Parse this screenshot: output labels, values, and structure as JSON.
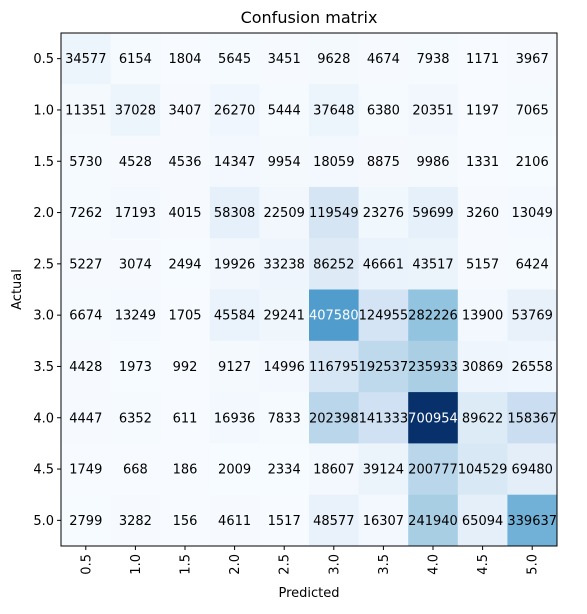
{
  "chart_data": {
    "type": "heatmap",
    "title": "Confusion matrix",
    "xlabel": "Predicted",
    "ylabel": "Actual",
    "x_categories": [
      "0.5",
      "1.0",
      "1.5",
      "2.0",
      "2.5",
      "3.0",
      "3.5",
      "4.0",
      "4.5",
      "5.0"
    ],
    "y_categories": [
      "0.5",
      "1.0",
      "1.5",
      "2.0",
      "2.5",
      "3.0",
      "3.5",
      "4.0",
      "4.5",
      "5.0"
    ],
    "values": [
      [
        34577,
        6154,
        1804,
        5645,
        3451,
        9628,
        4674,
        7938,
        1171,
        3967
      ],
      [
        11351,
        37028,
        3407,
        26270,
        5444,
        37648,
        6380,
        20351,
        1197,
        7065
      ],
      [
        5730,
        4528,
        4536,
        14347,
        9954,
        18059,
        8875,
        9986,
        1331,
        2106
      ],
      [
        7262,
        17193,
        4015,
        58308,
        22509,
        119549,
        23276,
        59699,
        3260,
        13049
      ],
      [
        5227,
        3074,
        2494,
        19926,
        33238,
        86252,
        46661,
        43517,
        5157,
        6424
      ],
      [
        6674,
        13249,
        1705,
        45584,
        29241,
        407580,
        124955,
        282226,
        13900,
        53769
      ],
      [
        4428,
        1973,
        992,
        9127,
        14996,
        116795,
        192537,
        235933,
        30869,
        26558
      ],
      [
        4447,
        6352,
        611,
        16936,
        7833,
        202398,
        141333,
        700954,
        89622,
        158367
      ],
      [
        1749,
        668,
        186,
        2009,
        2334,
        18607,
        39124,
        200777,
        104529,
        69480
      ],
      [
        2799,
        3282,
        156,
        4611,
        1517,
        48577,
        16307,
        241940,
        65094,
        339637
      ]
    ],
    "colormap": "Blues",
    "x_tick_rotation": "vertical",
    "grid": false,
    "colors": {
      "cell_low": "#f7fbff",
      "cell_high": "#08306b",
      "text_dark": "#000000",
      "text_light": "#ffffff",
      "axis": "#000000"
    }
  }
}
